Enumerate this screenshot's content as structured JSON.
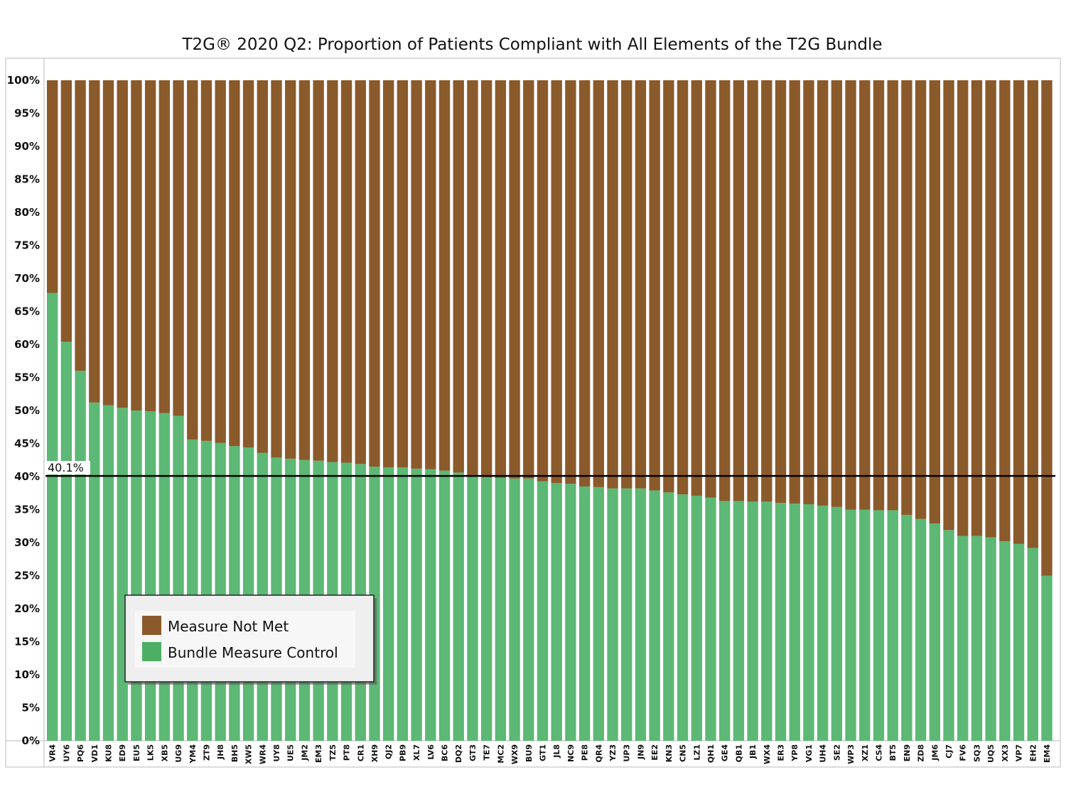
{
  "chart_data": {
    "type": "bar",
    "stacked": true,
    "title": "T2G® 2020 Q2: Proportion of Patients Compliant with All Elements of the T2G Bundle",
    "xlabel": "",
    "ylabel": "",
    "ylim": [
      0,
      100
    ],
    "yticks": [
      "0%",
      "5%",
      "10%",
      "15%",
      "20%",
      "25%",
      "30%",
      "35%",
      "40%",
      "45%",
      "50%",
      "55%",
      "60%",
      "65%",
      "70%",
      "75%",
      "80%",
      "85%",
      "90%",
      "95%",
      "100%"
    ],
    "grid": false,
    "legend": "bottom-left",
    "reference_line": {
      "value": 40.1,
      "label": "40.1%"
    },
    "categories": [
      "VR4",
      "UY6",
      "PQ6",
      "VD1",
      "KU8",
      "ED9",
      "EU5",
      "LK5",
      "XB5",
      "UG9",
      "YM4",
      "ZT9",
      "JH8",
      "BH5",
      "XW5",
      "WR4",
      "UY8",
      "UE5",
      "JM2",
      "EM3",
      "TZ5",
      "PT8",
      "CR1",
      "XH9",
      "QJ2",
      "PB9",
      "XL7",
      "LV6",
      "BC6",
      "DQ2",
      "GT3",
      "TE7",
      "MC2",
      "WX9",
      "BU9",
      "GT1",
      "JL8",
      "NC9",
      "PE8",
      "QR4",
      "YZ3",
      "UP3",
      "JN9",
      "EE2",
      "KN3",
      "CN5",
      "LZ1",
      "QH1",
      "GE4",
      "QB1",
      "JB1",
      "WX4",
      "ER3",
      "YP8",
      "VG1",
      "UH4",
      "SE2",
      "WP3",
      "XZ1",
      "CS4",
      "BT5",
      "EN9",
      "ZD8",
      "JM6",
      "CJ7",
      "FV6",
      "SQ3",
      "UQ5",
      "XX3",
      "VP7",
      "EH2",
      "EM4"
    ],
    "series": [
      {
        "name": "Bundle Measure Control",
        "color": "#5cb874",
        "values": [
          67.8,
          60.4,
          56.0,
          51.2,
          50.8,
          50.4,
          50.0,
          49.9,
          49.6,
          49.2,
          45.6,
          45.4,
          45.1,
          44.6,
          44.4,
          43.6,
          42.9,
          42.7,
          42.5,
          42.4,
          42.2,
          42.1,
          41.9,
          41.5,
          41.4,
          41.4,
          41.2,
          41.1,
          40.9,
          40.6,
          40.0,
          39.9,
          39.8,
          39.7,
          39.7,
          39.3,
          39.0,
          38.9,
          38.5,
          38.4,
          38.2,
          38.2,
          38.2,
          37.9,
          37.6,
          37.3,
          37.1,
          36.8,
          36.3,
          36.3,
          36.2,
          36.2,
          36.0,
          35.9,
          35.8,
          35.6,
          35.4,
          35.0,
          35.0,
          34.9,
          34.9,
          34.2,
          33.6,
          32.9,
          31.9,
          31.0,
          31.0,
          30.8,
          30.2,
          29.8,
          29.2,
          25.0
        ]
      },
      {
        "name": "Measure Not Met",
        "color": "#8b5a2b",
        "values": [
          32.2,
          39.6,
          44.0,
          48.8,
          49.2,
          49.6,
          50.0,
          50.1,
          50.4,
          50.8,
          54.4,
          54.6,
          54.9,
          55.4,
          55.6,
          56.4,
          57.1,
          57.3,
          57.5,
          57.6,
          57.8,
          57.9,
          58.1,
          58.5,
          58.6,
          58.6,
          58.8,
          58.9,
          59.1,
          59.4,
          60.0,
          60.1,
          60.2,
          60.3,
          60.3,
          60.7,
          61.0,
          61.1,
          61.5,
          61.6,
          61.8,
          61.8,
          61.8,
          62.1,
          62.4,
          62.7,
          62.9,
          63.2,
          63.7,
          63.7,
          63.8,
          63.8,
          64.0,
          64.1,
          64.2,
          64.4,
          64.6,
          65.0,
          65.0,
          65.1,
          65.1,
          65.8,
          66.4,
          67.1,
          68.1,
          69.0,
          69.0,
          69.2,
          69.8,
          70.2,
          70.8,
          75.0
        ]
      }
    ]
  },
  "legend_items": [
    {
      "label": "Measure Not Met",
      "color": "#8b5a2b"
    },
    {
      "label": "Bundle Measure Control",
      "color": "#4caf63"
    }
  ]
}
